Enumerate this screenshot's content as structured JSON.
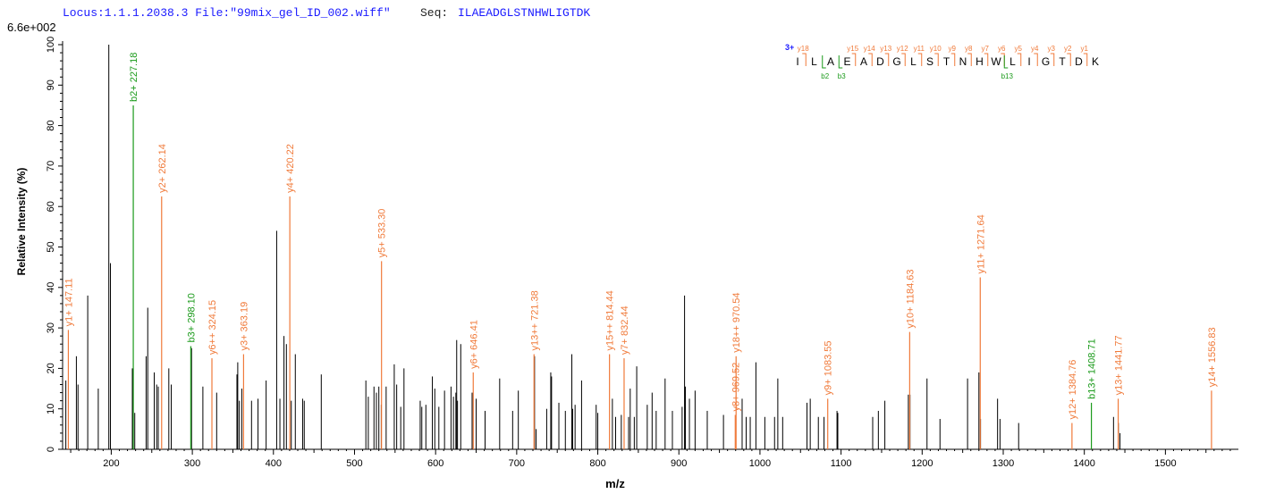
{
  "header": {
    "locus": "Locus:1.1.1.2038.3 File:\"99mix_gel_ID_002.wiff\"",
    "seq_label": "Seq:",
    "seq_value": "ILAEADGLSTNHWLIGTDK"
  },
  "scale_label": "6.6e+002",
  "chart_data": {
    "type": "bar",
    "xlabel": "m/z",
    "ylabel": "Relative   Intensity (%)",
    "xlim": [
      140,
      1590
    ],
    "ylim": [
      0,
      100
    ],
    "x_ticks": [
      200,
      300,
      400,
      500,
      600,
      700,
      800,
      900,
      1000,
      1100,
      1200,
      1300,
      1400,
      1500
    ],
    "y_ticks": [
      0,
      10,
      20,
      30,
      40,
      50,
      60,
      70,
      80,
      90,
      100
    ],
    "colors": {
      "unannotated": "#000000",
      "y_ion": "#f07a3a",
      "b_ion": "#1a9a1a",
      "charge": "#1a1aff"
    },
    "annotated_peaks": [
      {
        "mz": 147.11,
        "intensity": 29.5,
        "label": "y1+ 147.11",
        "ion": "y"
      },
      {
        "mz": 227.18,
        "intensity": 85.0,
        "label": "b2+ 227.18",
        "ion": "b"
      },
      {
        "mz": 262.14,
        "intensity": 62.5,
        "label": "y2+ 262.14",
        "ion": "y"
      },
      {
        "mz": 298.1,
        "intensity": 25.5,
        "label": "b3+ 298.10",
        "ion": "b"
      },
      {
        "mz": 324.15,
        "intensity": 22.5,
        "label": "y6++ 324.15",
        "ion": "y"
      },
      {
        "mz": 363.19,
        "intensity": 23.5,
        "label": "y3+ 363.19",
        "ion": "y"
      },
      {
        "mz": 420.22,
        "intensity": 62.5,
        "label": "y4+ 420.22",
        "ion": "y"
      },
      {
        "mz": 533.3,
        "intensity": 46.5,
        "label": "y5+ 533.30",
        "ion": "y"
      },
      {
        "mz": 646.41,
        "intensity": 19.0,
        "label": "y6+ 646.41",
        "ion": "y"
      },
      {
        "mz": 721.38,
        "intensity": 23.5,
        "label": "y13++ 721.38",
        "ion": "y"
      },
      {
        "mz": 814.44,
        "intensity": 23.5,
        "label": "y15++ 814.44",
        "ion": "y"
      },
      {
        "mz": 832.44,
        "intensity": 22.5,
        "label": "y7+ 832.44",
        "ion": "y"
      },
      {
        "mz": 970.54,
        "intensity": 23.0,
        "label": "y18++ 970.54",
        "ion": "y"
      },
      {
        "mz": 969.52,
        "intensity": 8.5,
        "label": "y8+ 969.52",
        "ion": "y"
      },
      {
        "mz": 1083.55,
        "intensity": 12.5,
        "label": "y9+ 1083.55",
        "ion": "y"
      },
      {
        "mz": 1184.63,
        "intensity": 29.0,
        "label": "y10+ 1184.63",
        "ion": "y"
      },
      {
        "mz": 1271.64,
        "intensity": 42.5,
        "label": "y11+ 1271.64",
        "ion": "y"
      },
      {
        "mz": 1384.76,
        "intensity": 6.5,
        "label": "y12+ 1384.76",
        "ion": "y"
      },
      {
        "mz": 1408.71,
        "intensity": 11.5,
        "label": "b13+ 1408.71",
        "ion": "b"
      },
      {
        "mz": 1441.77,
        "intensity": 12.5,
        "label": "y13+ 1441.77",
        "ion": "y"
      },
      {
        "mz": 1556.83,
        "intensity": 14.5,
        "label": "y14+ 1556.83",
        "ion": "y"
      }
    ],
    "unannotated_peaks": [
      [
        144,
        17
      ],
      [
        157,
        23
      ],
      [
        159,
        16
      ],
      [
        171,
        38
      ],
      [
        184,
        15
      ],
      [
        197,
        100
      ],
      [
        199,
        46
      ],
      [
        226,
        20
      ],
      [
        229,
        9
      ],
      [
        243,
        23
      ],
      [
        245,
        35
      ],
      [
        253,
        19
      ],
      [
        256,
        16
      ],
      [
        258,
        15.5
      ],
      [
        271,
        20
      ],
      [
        274,
        16
      ],
      [
        299,
        25
      ],
      [
        313,
        15.5
      ],
      [
        330,
        14
      ],
      [
        355,
        18.5
      ],
      [
        356,
        21.5
      ],
      [
        358,
        12
      ],
      [
        361,
        15
      ],
      [
        373,
        12
      ],
      [
        381,
        12.5
      ],
      [
        391,
        17
      ],
      [
        404,
        54
      ],
      [
        408,
        12.5
      ],
      [
        413,
        28
      ],
      [
        416,
        26
      ],
      [
        422,
        12
      ],
      [
        427,
        23.5
      ],
      [
        436,
        12.5
      ],
      [
        438,
        12
      ],
      [
        459,
        18.5
      ],
      [
        514,
        17
      ],
      [
        517,
        13
      ],
      [
        524,
        15.5
      ],
      [
        527,
        14
      ],
      [
        530,
        15.5
      ],
      [
        533,
        11
      ],
      [
        539,
        15.5
      ],
      [
        549,
        21
      ],
      [
        552,
        16
      ],
      [
        557,
        10.5
      ],
      [
        561,
        20
      ],
      [
        581,
        12
      ],
      [
        583,
        10.5
      ],
      [
        588,
        11
      ],
      [
        596,
        18
      ],
      [
        599,
        15
      ],
      [
        604,
        10.5
      ],
      [
        611,
        14.5
      ],
      [
        619,
        15.5
      ],
      [
        622,
        13
      ],
      [
        625,
        14
      ],
      [
        626,
        27
      ],
      [
        627,
        12
      ],
      [
        631,
        26
      ],
      [
        645,
        14
      ],
      [
        650,
        12.5
      ],
      [
        661,
        9.5
      ],
      [
        679,
        17.5
      ],
      [
        695,
        9.5
      ],
      [
        702,
        14.5
      ],
      [
        722,
        23
      ],
      [
        724,
        5
      ],
      [
        737,
        10
      ],
      [
        742,
        19
      ],
      [
        743,
        18
      ],
      [
        752,
        11.5
      ],
      [
        760,
        9.5
      ],
      [
        768,
        23.5
      ],
      [
        769,
        10
      ],
      [
        772,
        11
      ],
      [
        780,
        17
      ],
      [
        798,
        11
      ],
      [
        800,
        9
      ],
      [
        818,
        12.5
      ],
      [
        822,
        8
      ],
      [
        829,
        8.5
      ],
      [
        838,
        8
      ],
      [
        840,
        15
      ],
      [
        845,
        8
      ],
      [
        848,
        20.5
      ],
      [
        861,
        11
      ],
      [
        867,
        14
      ],
      [
        872,
        9.5
      ],
      [
        883,
        17.5
      ],
      [
        892,
        9.5
      ],
      [
        904,
        10.5
      ],
      [
        907,
        38
      ],
      [
        908,
        15.5
      ],
      [
        913,
        12.5
      ],
      [
        920,
        14.5
      ],
      [
        935,
        9.5
      ],
      [
        955,
        8.5
      ],
      [
        978,
        12.5
      ],
      [
        983,
        8
      ],
      [
        988,
        8
      ],
      [
        995,
        21.5
      ],
      [
        1006,
        8
      ],
      [
        1018,
        8
      ],
      [
        1022,
        17.5
      ],
      [
        1028,
        8
      ],
      [
        1058,
        11.5
      ],
      [
        1062,
        12.5
      ],
      [
        1072,
        8
      ],
      [
        1079,
        8
      ],
      [
        1095,
        9.5
      ],
      [
        1096,
        9
      ],
      [
        1139,
        8
      ],
      [
        1146,
        9.5
      ],
      [
        1154,
        12
      ],
      [
        1183,
        13.5
      ],
      [
        1185,
        13.5
      ],
      [
        1206,
        17.5
      ],
      [
        1222,
        7.5
      ],
      [
        1256,
        17.5
      ],
      [
        1270,
        19
      ],
      [
        1272,
        7.5
      ],
      [
        1293,
        12.5
      ],
      [
        1296,
        7.5
      ],
      [
        1319,
        6.5
      ],
      [
        1436,
        8
      ],
      [
        1442,
        6.5
      ],
      [
        1444,
        4
      ]
    ],
    "sequence_panel": {
      "charge": "3+",
      "residues": [
        "I",
        "L",
        "A",
        "E",
        "A",
        "D",
        "G",
        "L",
        "S",
        "T",
        "N",
        "H",
        "W",
        "L",
        "I",
        "G",
        "T",
        "D",
        "K"
      ],
      "y_ions": [
        {
          "label": "y18",
          "after": 0
        },
        {
          "label": "y15",
          "after": 3
        },
        {
          "label": "y14",
          "after": 4
        },
        {
          "label": "y13",
          "after": 5
        },
        {
          "label": "y12",
          "after": 6
        },
        {
          "label": "y11",
          "after": 7
        },
        {
          "label": "y10",
          "after": 8
        },
        {
          "label": "y9",
          "after": 9
        },
        {
          "label": "y8",
          "after": 10
        },
        {
          "label": "y7",
          "after": 11
        },
        {
          "label": "y6",
          "after": 12
        },
        {
          "label": "y5",
          "after": 13
        },
        {
          "label": "y4",
          "after": 14
        },
        {
          "label": "y3",
          "after": 15
        },
        {
          "label": "y2",
          "after": 16
        },
        {
          "label": "y1",
          "after": 17
        }
      ],
      "b_ions": [
        {
          "label": "b2",
          "after": 1
        },
        {
          "label": "b3",
          "after": 2
        },
        {
          "label": "b13",
          "after": 12
        }
      ]
    }
  }
}
